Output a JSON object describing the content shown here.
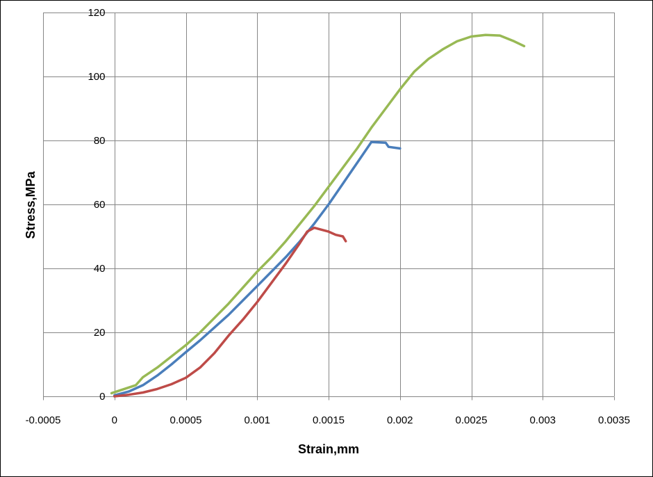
{
  "chart_data": {
    "type": "line",
    "title": "",
    "xlabel": "Strain,mm",
    "ylabel": "Stress,MPa",
    "xlim": [
      -0.0005,
      0.0035
    ],
    "ylim": [
      0,
      120
    ],
    "xticks": [
      -0.0005,
      0,
      0.0005,
      0.001,
      0.0015,
      0.002,
      0.0025,
      0.003,
      0.0035
    ],
    "xtick_labels": [
      "-0.0005",
      "0",
      "0.0005",
      "0.001",
      "0.0015",
      "0.002",
      "0.0025",
      "0.003",
      "0.0035"
    ],
    "yticks": [
      0,
      20,
      40,
      60,
      80,
      100,
      120
    ],
    "ytick_labels": [
      "0",
      "20",
      "40",
      "60",
      "80",
      "100",
      "120"
    ],
    "grid": true,
    "legend": "none",
    "series": [
      {
        "color": "#4a7ebb",
        "x": [
          0,
          0.0001,
          0.0002,
          0.0003,
          0.0004,
          0.0005,
          0.0006,
          0.0007,
          0.0008,
          0.0009,
          0.001,
          0.0011,
          0.0012,
          0.0013,
          0.0014,
          0.0015,
          0.0016,
          0.0017,
          0.0018,
          0.0019,
          0.00192,
          0.002
        ],
        "y": [
          0.3,
          1.5,
          3.5,
          6.5,
          10.0,
          13.8,
          17.5,
          21.5,
          25.5,
          30.0,
          34.5,
          39.0,
          43.5,
          48.5,
          54.0,
          60.0,
          66.5,
          73.0,
          79.5,
          79.3,
          78.0,
          77.5
        ]
      },
      {
        "color": "#be4b48",
        "x": [
          0,
          0.0001,
          0.0002,
          0.0003,
          0.0004,
          0.0005,
          0.0006,
          0.0007,
          0.0008,
          0.0009,
          0.001,
          0.0011,
          0.0012,
          0.0013,
          0.00135,
          0.0014,
          0.0015,
          0.00155,
          0.0016,
          0.00162
        ],
        "y": [
          0.0,
          0.5,
          1.2,
          2.3,
          3.8,
          5.8,
          9.0,
          13.5,
          19.0,
          24.0,
          29.5,
          35.5,
          41.5,
          48.0,
          51.5,
          52.7,
          51.5,
          50.5,
          50.0,
          48.5
        ]
      },
      {
        "color": "#98b954",
        "x": [
          -2e-05,
          0.00015,
          0.0002,
          0.0003,
          0.0004,
          0.0005,
          0.0006,
          0.0007,
          0.0008,
          0.0009,
          0.001,
          0.0011,
          0.0012,
          0.0013,
          0.0014,
          0.0015,
          0.0016,
          0.0017,
          0.0018,
          0.0019,
          0.002,
          0.0021,
          0.0022,
          0.0023,
          0.0024,
          0.0025,
          0.0026,
          0.0027,
          0.0028,
          0.00287
        ],
        "y": [
          1.0,
          3.5,
          6.0,
          9.0,
          12.5,
          16.0,
          20.0,
          24.5,
          29.0,
          34.0,
          39.0,
          43.5,
          48.5,
          54.0,
          59.5,
          65.5,
          71.5,
          77.5,
          84.0,
          90.0,
          96.0,
          101.5,
          105.5,
          108.5,
          111.0,
          112.5,
          113.0,
          112.8,
          111.0,
          109.5
        ]
      }
    ]
  }
}
